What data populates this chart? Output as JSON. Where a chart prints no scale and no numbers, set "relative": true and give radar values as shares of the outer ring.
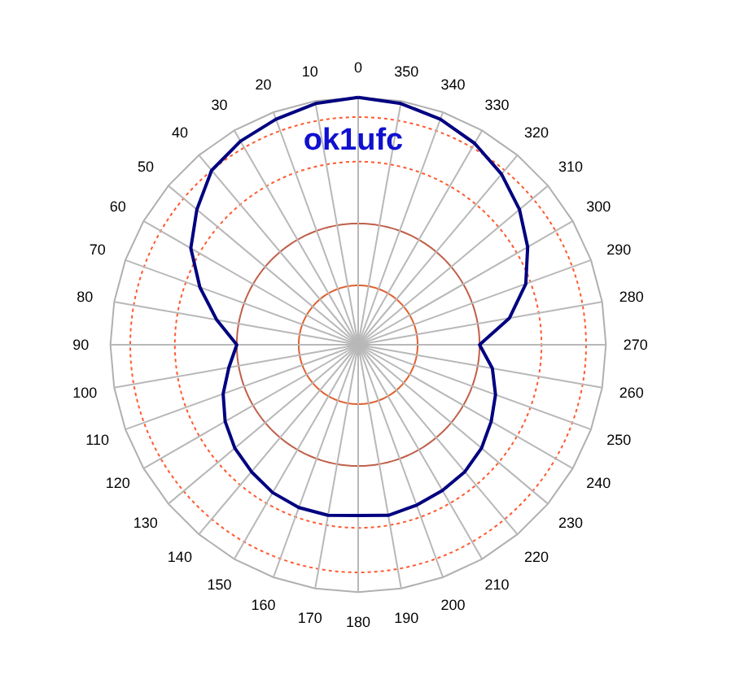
{
  "chart_data": {
    "type": "radar",
    "title": "ok1ufc",
    "relative": true,
    "grid": true,
    "categories": [
      "0",
      "350",
      "340",
      "330",
      "320",
      "310",
      "300",
      "290",
      "280",
      "270",
      "260",
      "250",
      "240",
      "230",
      "220",
      "210",
      "200",
      "190",
      "180",
      "170",
      "160",
      "150",
      "140",
      "130",
      "120",
      "110",
      "100",
      "90",
      "80",
      "70",
      "60",
      "50",
      "40",
      "30",
      "20",
      "10"
    ],
    "series": [
      {
        "color": "#000080",
        "values": [
          1.0,
          0.99,
          0.97,
          0.94,
          0.9,
          0.85,
          0.79,
          0.72,
          0.62,
          0.49,
          0.55,
          0.59,
          0.62,
          0.65,
          0.67,
          0.68,
          0.69,
          0.7,
          0.69,
          0.7,
          0.7,
          0.69,
          0.67,
          0.65,
          0.62,
          0.58,
          0.53,
          0.49,
          0.58,
          0.68,
          0.78,
          0.85,
          0.92,
          0.95,
          0.97,
          0.99
        ]
      }
    ]
  }
}
